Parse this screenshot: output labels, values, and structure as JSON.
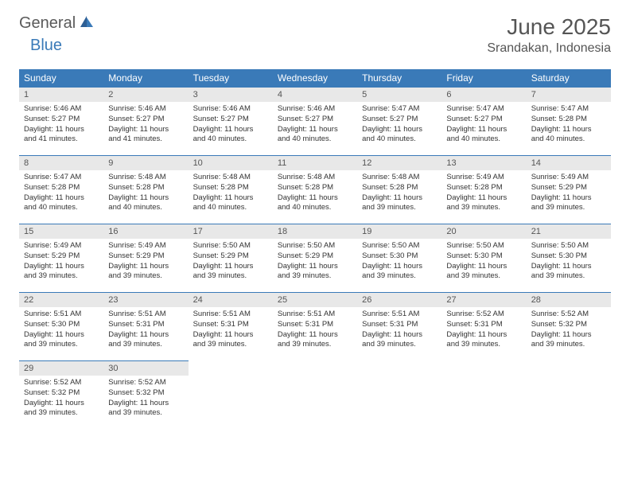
{
  "logo": {
    "word1": "General",
    "word2": "Blue"
  },
  "title": "June 2025",
  "location": "Srandakan, Indonesia",
  "colors": {
    "header_bg": "#3a7ab8",
    "header_fg": "#ffffff",
    "daynum_bg": "#e8e8e8",
    "border": "#3a7ab8",
    "text": "#333333",
    "logo_gray": "#5a5a5a",
    "logo_blue": "#3a7ab8"
  },
  "typography": {
    "title_fontsize": 28,
    "location_fontsize": 16,
    "weekday_fontsize": 12,
    "daynum_fontsize": 11,
    "body_fontsize": 9.5
  },
  "weekdays": [
    "Sunday",
    "Monday",
    "Tuesday",
    "Wednesday",
    "Thursday",
    "Friday",
    "Saturday"
  ],
  "weeks": [
    [
      {
        "n": "1",
        "sunrise": "5:46 AM",
        "sunset": "5:27 PM",
        "daylight": "11 hours and 41 minutes."
      },
      {
        "n": "2",
        "sunrise": "5:46 AM",
        "sunset": "5:27 PM",
        "daylight": "11 hours and 41 minutes."
      },
      {
        "n": "3",
        "sunrise": "5:46 AM",
        "sunset": "5:27 PM",
        "daylight": "11 hours and 40 minutes."
      },
      {
        "n": "4",
        "sunrise": "5:46 AM",
        "sunset": "5:27 PM",
        "daylight": "11 hours and 40 minutes."
      },
      {
        "n": "5",
        "sunrise": "5:47 AM",
        "sunset": "5:27 PM",
        "daylight": "11 hours and 40 minutes."
      },
      {
        "n": "6",
        "sunrise": "5:47 AM",
        "sunset": "5:27 PM",
        "daylight": "11 hours and 40 minutes."
      },
      {
        "n": "7",
        "sunrise": "5:47 AM",
        "sunset": "5:28 PM",
        "daylight": "11 hours and 40 minutes."
      }
    ],
    [
      {
        "n": "8",
        "sunrise": "5:47 AM",
        "sunset": "5:28 PM",
        "daylight": "11 hours and 40 minutes."
      },
      {
        "n": "9",
        "sunrise": "5:48 AM",
        "sunset": "5:28 PM",
        "daylight": "11 hours and 40 minutes."
      },
      {
        "n": "10",
        "sunrise": "5:48 AM",
        "sunset": "5:28 PM",
        "daylight": "11 hours and 40 minutes."
      },
      {
        "n": "11",
        "sunrise": "5:48 AM",
        "sunset": "5:28 PM",
        "daylight": "11 hours and 40 minutes."
      },
      {
        "n": "12",
        "sunrise": "5:48 AM",
        "sunset": "5:28 PM",
        "daylight": "11 hours and 39 minutes."
      },
      {
        "n": "13",
        "sunrise": "5:49 AM",
        "sunset": "5:28 PM",
        "daylight": "11 hours and 39 minutes."
      },
      {
        "n": "14",
        "sunrise": "5:49 AM",
        "sunset": "5:29 PM",
        "daylight": "11 hours and 39 minutes."
      }
    ],
    [
      {
        "n": "15",
        "sunrise": "5:49 AM",
        "sunset": "5:29 PM",
        "daylight": "11 hours and 39 minutes."
      },
      {
        "n": "16",
        "sunrise": "5:49 AM",
        "sunset": "5:29 PM",
        "daylight": "11 hours and 39 minutes."
      },
      {
        "n": "17",
        "sunrise": "5:50 AM",
        "sunset": "5:29 PM",
        "daylight": "11 hours and 39 minutes."
      },
      {
        "n": "18",
        "sunrise": "5:50 AM",
        "sunset": "5:29 PM",
        "daylight": "11 hours and 39 minutes."
      },
      {
        "n": "19",
        "sunrise": "5:50 AM",
        "sunset": "5:30 PM",
        "daylight": "11 hours and 39 minutes."
      },
      {
        "n": "20",
        "sunrise": "5:50 AM",
        "sunset": "5:30 PM",
        "daylight": "11 hours and 39 minutes."
      },
      {
        "n": "21",
        "sunrise": "5:50 AM",
        "sunset": "5:30 PM",
        "daylight": "11 hours and 39 minutes."
      }
    ],
    [
      {
        "n": "22",
        "sunrise": "5:51 AM",
        "sunset": "5:30 PM",
        "daylight": "11 hours and 39 minutes."
      },
      {
        "n": "23",
        "sunrise": "5:51 AM",
        "sunset": "5:31 PM",
        "daylight": "11 hours and 39 minutes."
      },
      {
        "n": "24",
        "sunrise": "5:51 AM",
        "sunset": "5:31 PM",
        "daylight": "11 hours and 39 minutes."
      },
      {
        "n": "25",
        "sunrise": "5:51 AM",
        "sunset": "5:31 PM",
        "daylight": "11 hours and 39 minutes."
      },
      {
        "n": "26",
        "sunrise": "5:51 AM",
        "sunset": "5:31 PM",
        "daylight": "11 hours and 39 minutes."
      },
      {
        "n": "27",
        "sunrise": "5:52 AM",
        "sunset": "5:31 PM",
        "daylight": "11 hours and 39 minutes."
      },
      {
        "n": "28",
        "sunrise": "5:52 AM",
        "sunset": "5:32 PM",
        "daylight": "11 hours and 39 minutes."
      }
    ],
    [
      {
        "n": "29",
        "sunrise": "5:52 AM",
        "sunset": "5:32 PM",
        "daylight": "11 hours and 39 minutes."
      },
      {
        "n": "30",
        "sunrise": "5:52 AM",
        "sunset": "5:32 PM",
        "daylight": "11 hours and 39 minutes."
      },
      null,
      null,
      null,
      null,
      null
    ]
  ],
  "labels": {
    "sunrise": "Sunrise:",
    "sunset": "Sunset:",
    "daylight": "Daylight:"
  }
}
